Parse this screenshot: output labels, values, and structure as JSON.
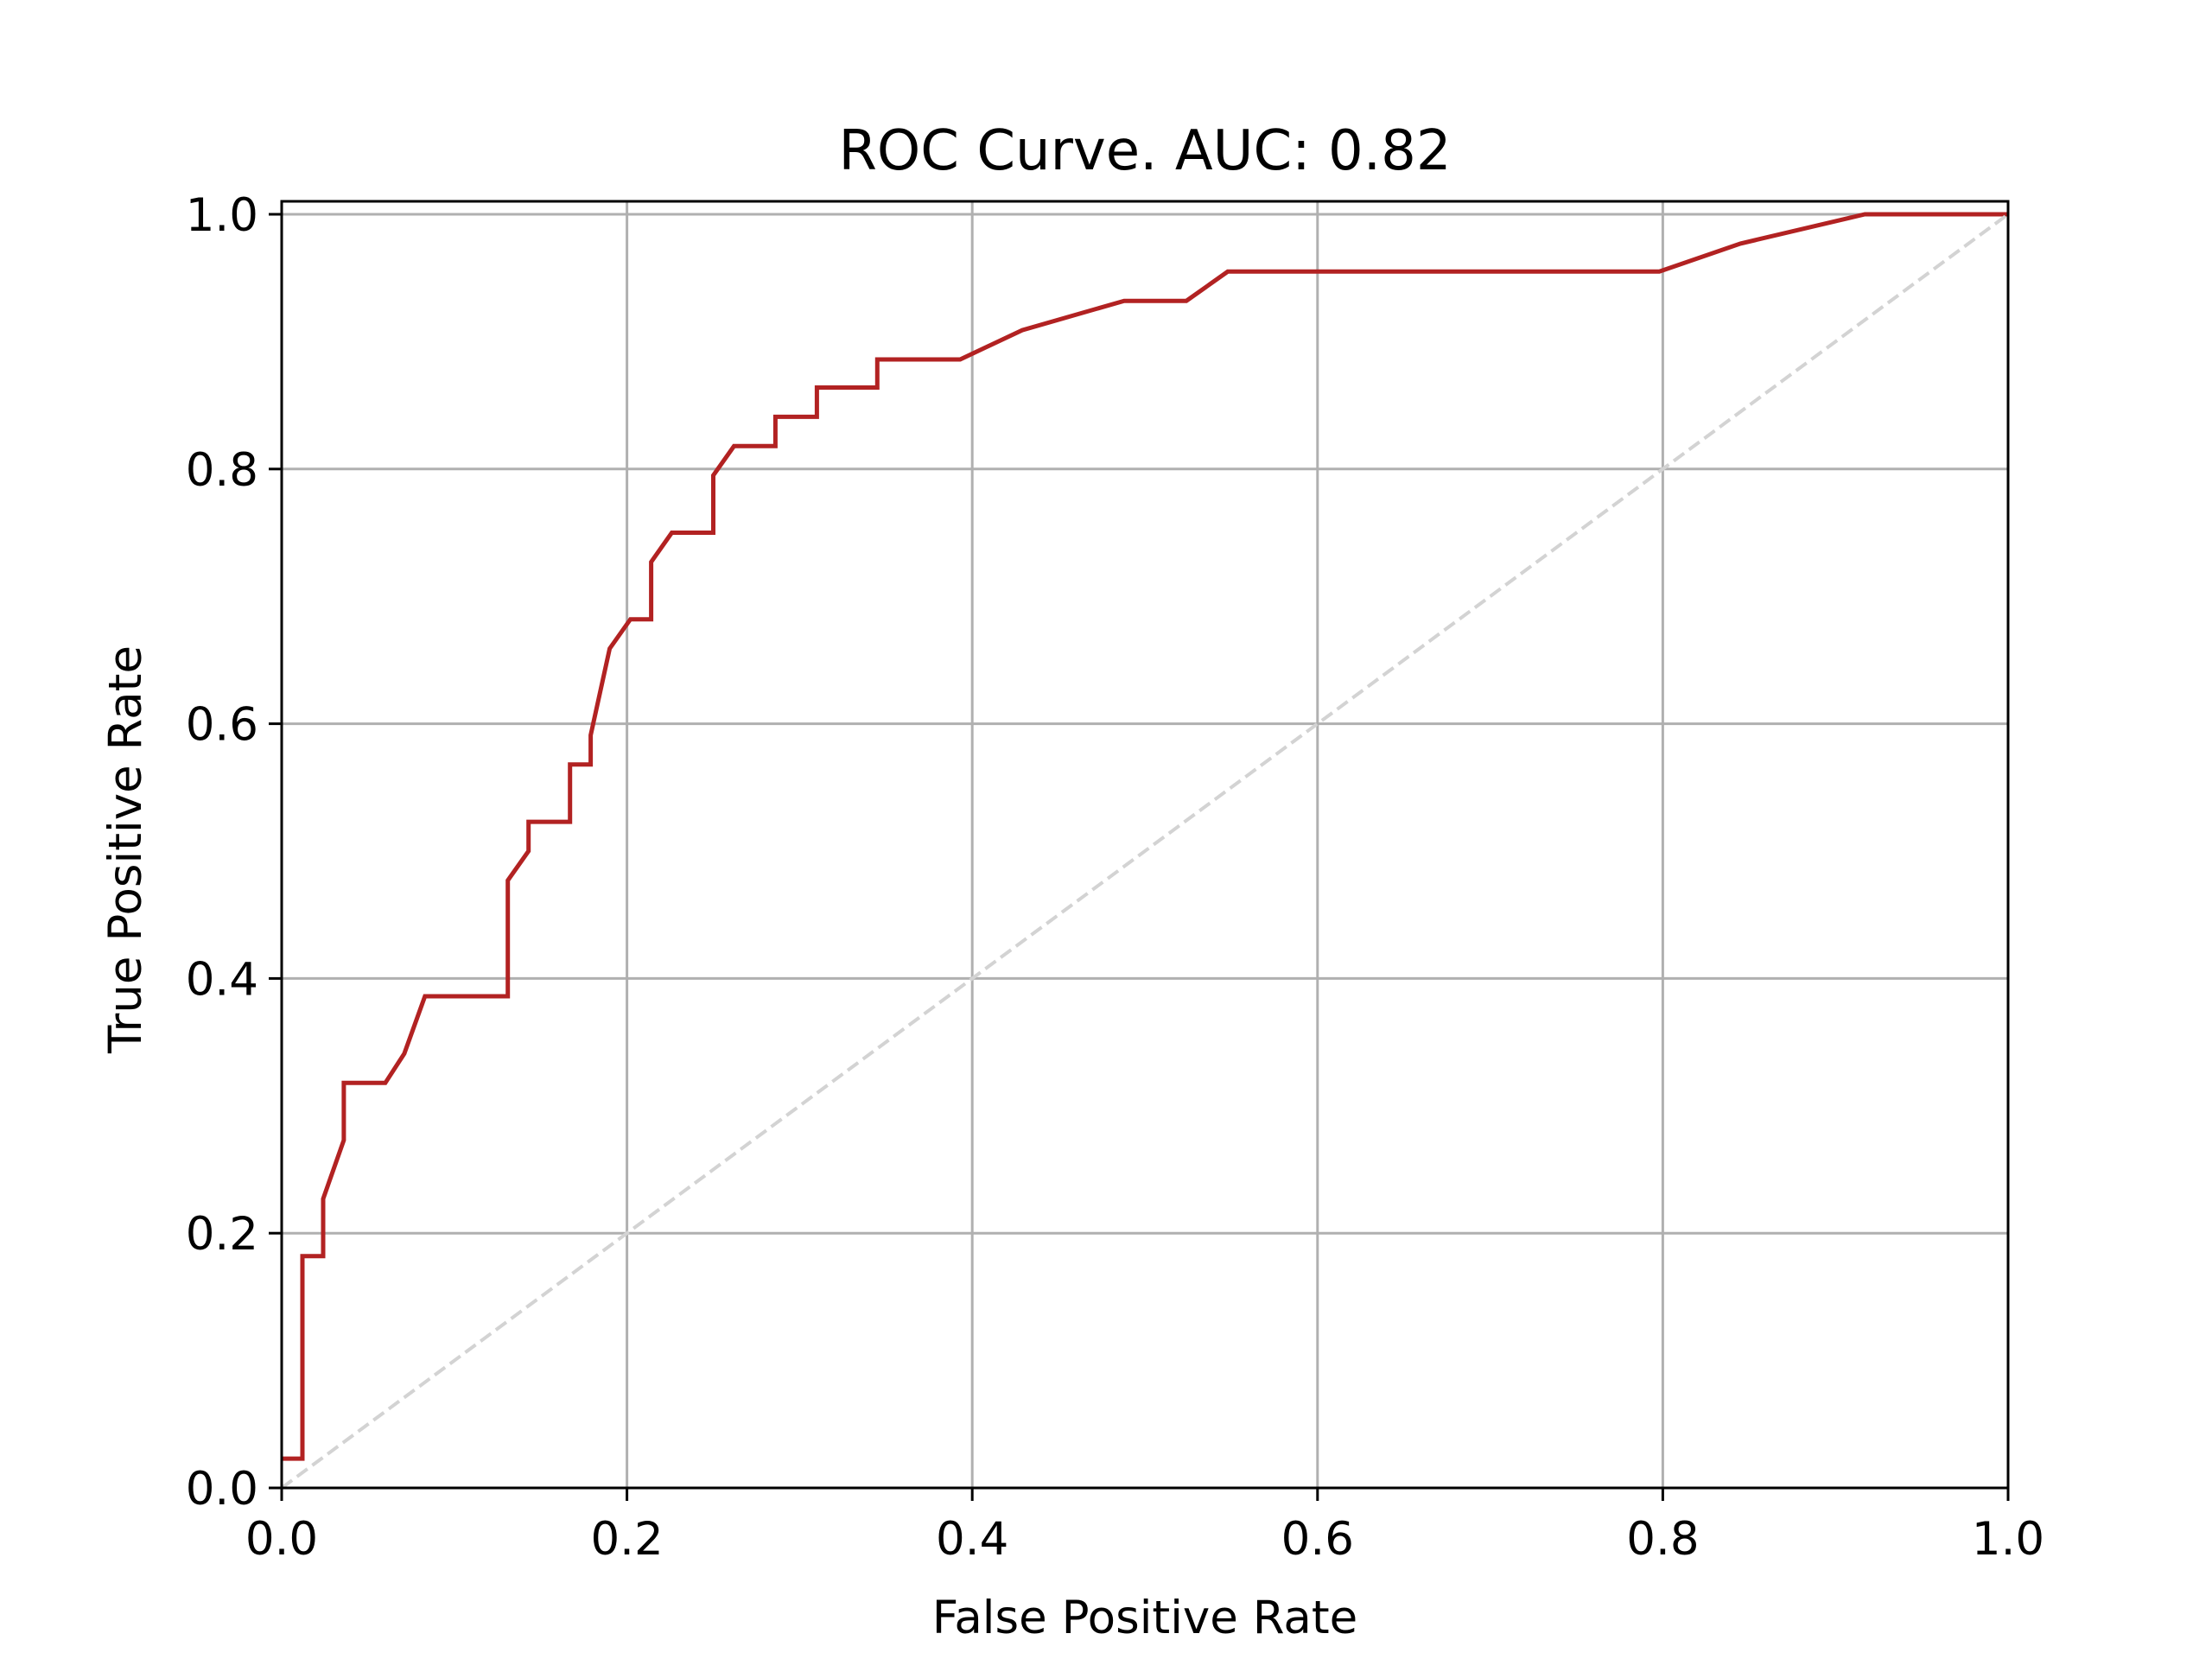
{
  "chart_data": {
    "type": "line",
    "title": "ROC Curve. AUC: 0.82",
    "xlabel": "False Positive Rate",
    "ylabel": "True Positive Rate",
    "xlim": [
      0.0,
      1.0
    ],
    "ylim": [
      0.0,
      1.0
    ],
    "xticks": [
      "0.0",
      "0.2",
      "0.4",
      "0.6",
      "0.8",
      "1.0"
    ],
    "yticks": [
      "0.0",
      "0.2",
      "0.4",
      "0.6",
      "0.8",
      "1.0"
    ],
    "grid": true,
    "colors": {
      "roc_line": "#b22222",
      "diagonal": "#d3d3d3",
      "grid": "#b0b0b0"
    },
    "series": [
      {
        "style": "solid",
        "x": [
          0.0,
          0.012,
          0.012,
          0.024,
          0.024,
          0.036,
          0.036,
          0.06,
          0.071,
          0.083,
          0.131,
          0.131,
          0.143,
          0.143,
          0.167,
          0.167,
          0.179,
          0.179,
          0.19,
          0.202,
          0.214,
          0.214,
          0.226,
          0.25,
          0.25,
          0.262,
          0.286,
          0.286,
          0.31,
          0.31,
          0.345,
          0.345,
          0.393,
          0.429,
          0.488,
          0.524,
          0.548,
          0.798,
          0.845,
          0.917,
          1.0
        ],
        "y": [
          0.023,
          0.023,
          0.182,
          0.182,
          0.227,
          0.273,
          0.318,
          0.318,
          0.341,
          0.386,
          0.386,
          0.477,
          0.5,
          0.523,
          0.523,
          0.568,
          0.568,
          0.591,
          0.659,
          0.682,
          0.682,
          0.727,
          0.75,
          0.75,
          0.795,
          0.818,
          0.818,
          0.841,
          0.841,
          0.864,
          0.864,
          0.886,
          0.886,
          0.909,
          0.932,
          0.932,
          0.955,
          0.955,
          0.977,
          1.0,
          1.0
        ]
      },
      {
        "style": "dashed",
        "x": [
          0.0,
          1.0
        ],
        "y": [
          0.0,
          1.0
        ]
      }
    ]
  }
}
